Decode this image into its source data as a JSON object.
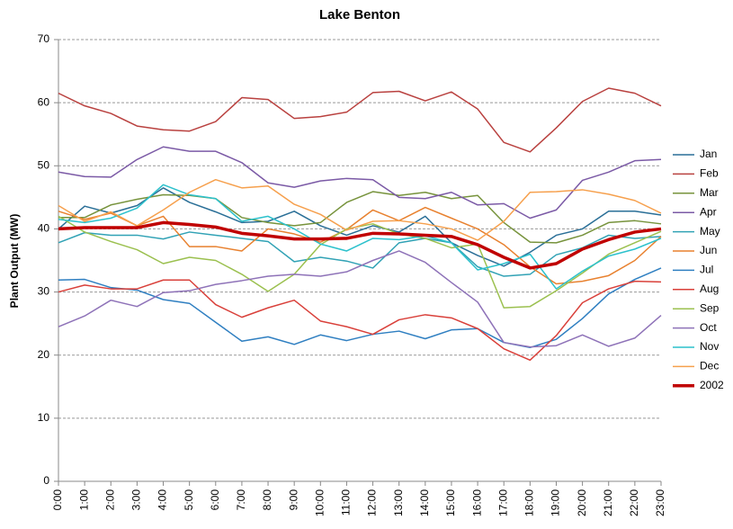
{
  "chart_data": {
    "type": "line",
    "title": "Lake Benton",
    "y_label": "Plant Output (MW)",
    "categories": [
      "0:00",
      "1:00",
      "2:00",
      "3:00",
      "4:00",
      "5:00",
      "6:00",
      "7:00",
      "8:00",
      "9:00",
      "10:00",
      "11:00",
      "12:00",
      "13:00",
      "14:00",
      "15:00",
      "16:00",
      "17:00",
      "18:00",
      "19:00",
      "20:00",
      "21:00",
      "22:00",
      "23:00"
    ],
    "ylim": [
      0,
      70
    ],
    "yticks": [
      0,
      10,
      20,
      30,
      40,
      50,
      60,
      70
    ],
    "grid": true,
    "legend": "right",
    "series": [
      {
        "name": "Jan",
        "color": "#2a6f97",
        "values": [
          40,
          43.6,
          42.5,
          43.7,
          46.5,
          44.2,
          42.7,
          41,
          41.2,
          42.8,
          40.5,
          39,
          40.5,
          39.5,
          42,
          37.8,
          35.8,
          34.1,
          36.3,
          39,
          40,
          42.8,
          42.8,
          42.2
        ]
      },
      {
        "name": "Feb",
        "color": "#b9413f",
        "values": [
          61.5,
          59.5,
          58.3,
          56.3,
          55.7,
          55.5,
          57,
          60.8,
          60.5,
          57.5,
          57.8,
          58.5,
          61.6,
          61.8,
          60.3,
          61.7,
          59,
          53.7,
          52.2,
          56,
          60.2,
          62.3,
          61.5,
          59.5
        ]
      },
      {
        "name": "Mar",
        "color": "#77933c",
        "values": [
          41.8,
          41.8,
          43.8,
          44.7,
          45.4,
          45.3,
          44.8,
          41.8,
          41,
          40.5,
          41,
          44.2,
          45.9,
          45.3,
          45.8,
          44.8,
          45.3,
          41,
          37.9,
          37.8,
          39,
          41,
          41.3,
          40.8
        ]
      },
      {
        "name": "Apr",
        "color": "#7b5aa6",
        "values": [
          49,
          48.3,
          48.2,
          51,
          53,
          52.3,
          52.3,
          50.5,
          47.3,
          46.6,
          47.6,
          48,
          47.8,
          45,
          44.8,
          45.8,
          43.8,
          44,
          41.7,
          43,
          47.7,
          49,
          50.8,
          51
        ]
      },
      {
        "name": "May",
        "color": "#31a2b5",
        "values": [
          37.8,
          39.4,
          39,
          39,
          38.4,
          39.5,
          39,
          38.5,
          38,
          34.8,
          35.5,
          34.9,
          33.8,
          37.8,
          38.5,
          37.8,
          34,
          32.5,
          32.8,
          35.9,
          37,
          39,
          38.5,
          38.8
        ]
      },
      {
        "name": "Jun",
        "color": "#e8812f",
        "values": [
          42.8,
          41.5,
          42.5,
          40.5,
          42,
          37.2,
          37.2,
          36.5,
          40,
          39.2,
          37.9,
          39.9,
          43,
          41.3,
          43.4,
          41.7,
          40,
          37.5,
          34,
          31.3,
          31.7,
          32.6,
          35,
          38.8
        ]
      },
      {
        "name": "Jul",
        "color": "#2f7fc1",
        "values": [
          31.9,
          32,
          30.7,
          30.3,
          28.8,
          28.2,
          25.2,
          22.2,
          22.9,
          21.7,
          23.2,
          22.3,
          23.3,
          23.8,
          22.6,
          24,
          24.2,
          22,
          21.2,
          22.5,
          25.8,
          29.7,
          32,
          33.8
        ]
      },
      {
        "name": "Aug",
        "color": "#d9403a",
        "values": [
          30,
          31.1,
          30.5,
          30.5,
          31.9,
          31.9,
          28,
          26,
          27.5,
          28.7,
          25.4,
          24.5,
          23.3,
          25.6,
          26.4,
          25.9,
          24.2,
          21,
          19.2,
          23.1,
          28.3,
          30.5,
          31.7,
          31.6
        ]
      },
      {
        "name": "Sep",
        "color": "#9bc04f",
        "values": [
          42,
          39.5,
          38,
          36.7,
          34.5,
          35.5,
          35,
          32.8,
          30.1,
          32.8,
          37.5,
          40,
          40.8,
          39.2,
          38.5,
          37,
          37.6,
          27.5,
          27.7,
          30.2,
          33,
          36,
          37.8,
          39.6
        ]
      },
      {
        "name": "Oct",
        "color": "#8e72b8",
        "values": [
          24.5,
          26.2,
          28.7,
          27.7,
          29.9,
          30.2,
          31.2,
          31.8,
          32.5,
          32.8,
          32.5,
          33.2,
          35,
          36.5,
          34.7,
          31.5,
          28.4,
          22,
          21.3,
          21.5,
          23.2,
          21.4,
          22.7,
          26.3
        ]
      },
      {
        "name": "Nov",
        "color": "#2cc1cc",
        "values": [
          41.5,
          41,
          41.7,
          43.3,
          47,
          45.4,
          44.8,
          41.2,
          42,
          40,
          37.6,
          36.5,
          38.5,
          38.3,
          38.9,
          37.8,
          33.5,
          34.5,
          36,
          30.5,
          33.3,
          35.7,
          36.8,
          38.5
        ]
      },
      {
        "name": "Dec",
        "color": "#f6a04d",
        "values": [
          43.7,
          41.2,
          42.7,
          40.5,
          43,
          45.8,
          47.8,
          46.5,
          46.8,
          43.9,
          42.3,
          39.8,
          41.2,
          41.3,
          40.8,
          40,
          38.2,
          41.2,
          45.8,
          45.9,
          46.2,
          45.5,
          44.5,
          42.5
        ]
      },
      {
        "name": "2002",
        "color": "#c00000",
        "line_width": 3.5,
        "values": [
          40,
          40.2,
          40.2,
          40.2,
          41,
          40.7,
          40.3,
          39.3,
          38.9,
          38.4,
          38.4,
          38.5,
          39.3,
          39.2,
          39,
          38.8,
          37.5,
          35.5,
          33.8,
          34.5,
          36.8,
          38.3,
          39.5,
          40
        ]
      }
    ]
  }
}
